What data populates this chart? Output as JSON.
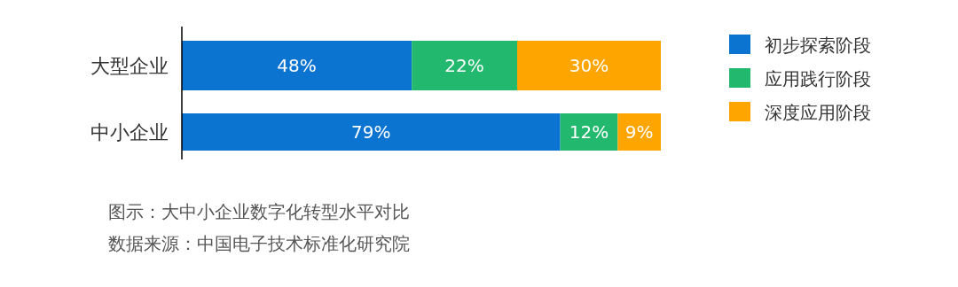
{
  "chart_data": {
    "type": "bar",
    "orientation": "horizontal",
    "stacked": true,
    "legend": "top right",
    "categories": [
      "大型企业",
      "中小企业"
    ],
    "series": [
      {
        "name": "初步探索阶段",
        "color": "#0a74d0",
        "values": [
          48,
          79
        ],
        "value_labels": [
          "48%",
          "79%"
        ]
      },
      {
        "name": "应用践行阶段",
        "color": "#22b86e",
        "values": [
          22,
          12
        ],
        "value_labels": [
          "22%",
          "12%"
        ]
      },
      {
        "name": "深度应用阶段",
        "color": "#ffa500",
        "values": [
          30,
          9
        ],
        "value_labels": [
          "30%",
          "9%"
        ]
      }
    ],
    "annotations": [
      "图示：大中小企业数字化转型水平对比",
      "数据来源：中国电子技术标准化研究院"
    ]
  }
}
